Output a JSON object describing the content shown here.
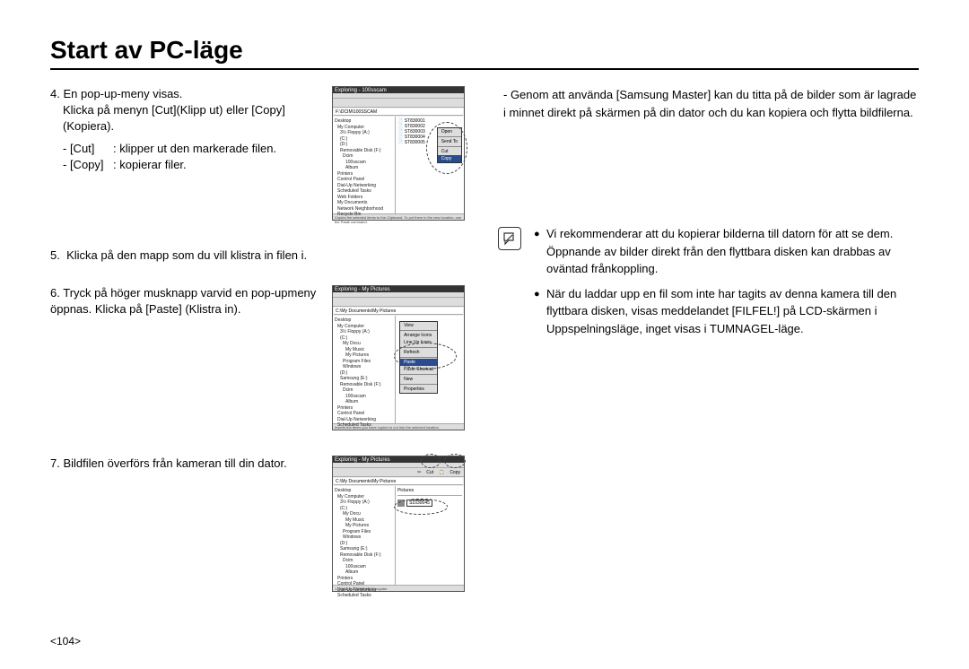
{
  "title": "Start av PC-läge",
  "page_number": "<104>",
  "colors": {
    "text": "#000000",
    "bg": "#ffffff",
    "rule": "#000000"
  },
  "fonts": {
    "body_pt": 13,
    "title_pt": 28
  },
  "left": {
    "step4": {
      "num": "4.",
      "line1": "En pop-up-meny visas.",
      "line2": "Klicka på menyn [Cut](Klipp ut) eller [Copy](Kopiera).",
      "cut_tag": "- [Cut]",
      "cut_desc": ": klipper ut den markerade filen.",
      "copy_tag": "- [Copy]",
      "copy_desc": ": kopierar filer."
    },
    "step5": {
      "num": "5.",
      "text": "Klicka på den mapp som du vill klistra in filen i."
    },
    "step6": {
      "num": "6.",
      "text": "Tryck på höger musknapp varvid en pop-upmeny öppnas. Klicka på [Paste] (Klistra in)."
    },
    "step7": {
      "num": "7.",
      "text": "Bildfilen överförs från kameran till din dator."
    }
  },
  "right": {
    "para": "- Genom att använda [Samsung Master] kan du titta på de bilder som är lagrade i minnet direkt på skärmen på din dator och du kan kopiera och flytta bildfilerna.",
    "info1": "Vi rekommenderar att du kopierar bilderna till datorn för att se dem. Öppnande av bilder direkt från den flyttbara disken kan drabbas av oväntad frånkoppling.",
    "info2": "När du laddar upp en fil som inte har tagits av denna kamera till den flyttbara disken, visas meddelandet [FILFEL!] på LCD-skärmen i Uppspelningsläge, inget visas i TUMNAGEL-läge."
  },
  "screenshots": {
    "s4": {
      "title": "Exploring - 100sscam",
      "addr": "F:\\DCIM\\100SSCAM",
      "tree": [
        "Desktop",
        " My Computer",
        "  3½ Floppy (A:)",
        "  (C:)",
        "  (D:)",
        "  Removable Disk (F:)",
        "   Dcim",
        "    100sscam",
        "    Album",
        " Printers",
        " Control Panel",
        " Dial-Up Networking",
        " Scheduled Tasks",
        " Web Folders",
        " My Documents",
        " Network Neighborhood",
        " Recycle Bin"
      ],
      "files": [
        "ST830001",
        "ST830002",
        "ST830003",
        "ST830004",
        "ST830005"
      ],
      "ctx": {
        "open": "Open",
        "send": "Send To",
        "cut": "Cut",
        "copy": "Copy"
      },
      "status": "Copies the selected items to the Clipboard. To put them in the new location, use the Paste command."
    },
    "s6": {
      "title": "Exploring - My Pictures",
      "addr": "C:\\My Documents\\My Pictures",
      "tree": [
        "Desktop",
        " My Computer",
        "  3½ Floppy (A:)",
        "  (C:)",
        "   My Docu",
        "    My Music",
        "    My Pictures",
        "   Program Files",
        "   Windows",
        "  (D:)",
        "  Samsung (E:)",
        "  Removable Disk (F:)",
        "   Dcim",
        "    100sscam",
        "    Album",
        " Printers",
        " Control Panel",
        " Dial-Up Networking",
        " Scheduled Tasks"
      ],
      "ctx": {
        "view": "View",
        "arrange": "Arrange Icons",
        "lineup": "Line Up Icons",
        "refresh": "Refresh",
        "paste": "Paste",
        "shortcut": "Paste Shortcut",
        "new": "New",
        "props": "Properties"
      },
      "status": "Inserts the items you have copied or cut into the selected location."
    },
    "s7": {
      "title": "Exploring - My Pictures",
      "addr": "C:\\My Documents\\My Pictures",
      "toolbar": {
        "cut": "Cut",
        "copy": "Copy"
      },
      "tree": [
        "Desktop",
        " My Computer",
        "  3½ Floppy (A:)",
        "  (C:)",
        "   My Docu",
        "    My Music",
        "    My Pictures",
        "   Program Files",
        "   Windows",
        "  (D:)",
        "  Samsung (E:)",
        "  Removable Disk (F:)",
        "   Dcim",
        "    100sscam",
        "    Album",
        " Printers",
        " Control Panel",
        " Dial-Up Networking",
        " Scheduled Tasks"
      ],
      "pane_label": "Pictures",
      "file": "S1030045",
      "status": "1 object(s)    2.25MB    My Computer"
    }
  }
}
